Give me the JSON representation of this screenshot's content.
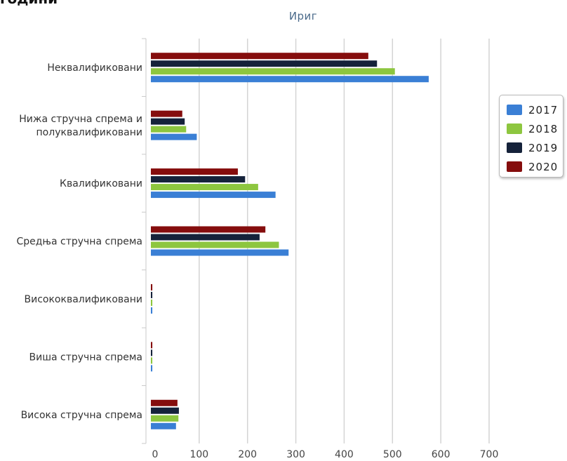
{
  "page": {
    "heading": "години"
  },
  "chart_data": {
    "type": "bar",
    "orientation": "horizontal",
    "title": "Ириг",
    "categories": [
      [
        "Неквалификовани"
      ],
      [
        "Нижа стручна спрема и",
        "полуквалификовани"
      ],
      [
        "Квалификовани"
      ],
      [
        "Средња стручна спрема"
      ],
      [
        "Висококвалификовани"
      ],
      [
        "Виша стручна спрема"
      ],
      [
        "Висока стручна спрема"
      ]
    ],
    "series": [
      {
        "name": "2017",
        "color": "#3a7fd5",
        "values": [
          575,
          95,
          258,
          285,
          3,
          3,
          52
        ]
      },
      {
        "name": "2018",
        "color": "#8dc63f",
        "values": [
          505,
          73,
          222,
          265,
          3,
          3,
          57
        ]
      },
      {
        "name": "2019",
        "color": "#15223a",
        "values": [
          468,
          70,
          195,
          225,
          3,
          3,
          58
        ]
      },
      {
        "name": "2020",
        "color": "#850d0d",
        "values": [
          450,
          65,
          180,
          237,
          3,
          3,
          55
        ]
      }
    ],
    "xlim": [
      0,
      700
    ],
    "xticks": [
      0,
      100,
      200,
      300,
      400,
      500,
      600,
      700
    ],
    "grid": true,
    "legend": "right"
  }
}
